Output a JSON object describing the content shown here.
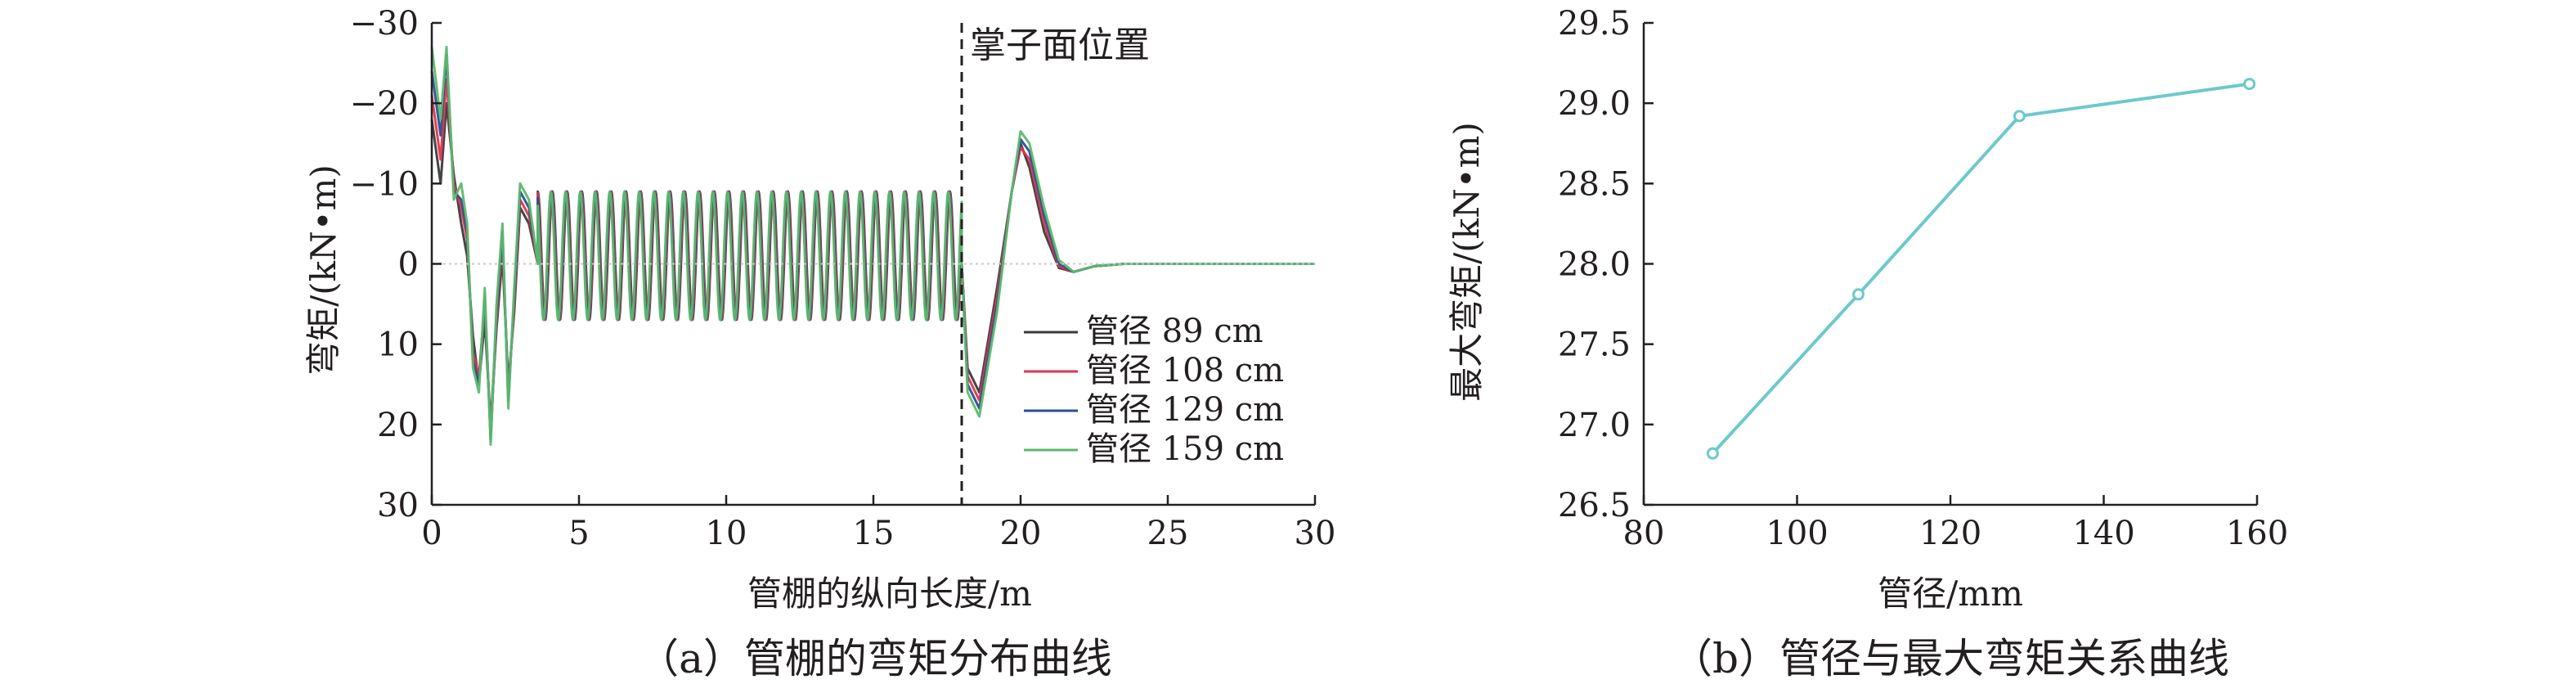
{
  "chart_data": [
    {
      "type": "line",
      "caption": "（a）管棚的弯矩分布曲线",
      "xlabel": "管棚的纵向长度/m",
      "ylabel": "弯矩/(kN•m)",
      "xlim": [
        0,
        30
      ],
      "ylim": [
        -30,
        30
      ],
      "y_inverted": true,
      "xticks": [
        0,
        5,
        10,
        15,
        20,
        25,
        30
      ],
      "yticks": [
        -30,
        -20,
        -10,
        0,
        10,
        20,
        30
      ],
      "ytick_labels": [
        "−30",
        "−20",
        "−10",
        "0",
        "10",
        "20",
        "30"
      ],
      "annotation": {
        "text": "掌子面位置",
        "x": 18
      },
      "legend_position": "right-center",
      "series": [
        {
          "name": "管径 89 cm",
          "color": "#3a3a3a",
          "x": [
            0,
            0.3,
            0.5,
            0.75,
            1.0,
            1.2,
            1.4,
            1.6,
            1.8,
            2.0,
            2.2,
            2.4,
            2.6,
            2.8,
            3.0,
            3.3,
            3.6,
            18.0,
            18.2,
            18.6,
            19.2,
            19.7,
            20.0,
            20.3,
            20.8,
            21.3,
            21.8,
            22.5,
            23.5,
            30
          ],
          "y": [
            -18,
            -10,
            -20,
            -11,
            -5,
            -1,
            9,
            15,
            7,
            20,
            8,
            -1,
            15,
            6,
            -7,
            -5,
            0,
            0,
            13,
            16,
            3,
            -9,
            -15,
            -12,
            -4,
            0.5,
            1,
            0.3,
            0,
            0
          ]
        },
        {
          "name": "管径 108 cm",
          "color": "#e0344e",
          "x": [
            0,
            0.3,
            0.5,
            0.75,
            1.0,
            1.2,
            1.4,
            1.6,
            1.8,
            2.0,
            2.2,
            2.4,
            2.6,
            2.8,
            3.0,
            3.3,
            3.6,
            18.0,
            18.2,
            18.6,
            19.2,
            19.7,
            20.0,
            20.3,
            20.8,
            21.3,
            21.8,
            22.5,
            23.5,
            30
          ],
          "y": [
            -21,
            -13,
            -23,
            -10,
            -7,
            -3,
            11,
            14,
            5,
            21,
            7,
            -3,
            16,
            5,
            -8,
            -6,
            0,
            0,
            14,
            17,
            4,
            -9,
            -14.5,
            -13,
            -5,
            0.3,
            1,
            0.3,
            0,
            0
          ]
        },
        {
          "name": "管径 129 cm",
          "color": "#2d4f8c",
          "x": [
            0,
            0.3,
            0.5,
            0.75,
            1.0,
            1.2,
            1.4,
            1.6,
            1.8,
            2.0,
            2.2,
            2.4,
            2.6,
            2.8,
            3.0,
            3.3,
            3.6,
            18.0,
            18.2,
            18.6,
            19.2,
            19.7,
            20.0,
            20.3,
            20.8,
            21.3,
            21.8,
            22.5,
            23.5,
            30
          ],
          "y": [
            -24,
            -16,
            -26,
            -9,
            -8,
            -4,
            12,
            15,
            4,
            22,
            6,
            -4,
            17,
            4,
            -9,
            -7,
            0,
            0,
            15,
            18,
            5,
            -9,
            -15.5,
            -14,
            -6,
            0,
            1,
            0.3,
            0,
            0
          ]
        },
        {
          "name": "管径 159 cm",
          "color": "#5db86d",
          "x": [
            0,
            0.3,
            0.5,
            0.75,
            1.0,
            1.2,
            1.4,
            1.6,
            1.8,
            2.0,
            2.2,
            2.4,
            2.6,
            2.8,
            3.0,
            3.3,
            3.6,
            18.0,
            18.2,
            18.6,
            19.2,
            19.7,
            20.0,
            20.3,
            20.8,
            21.3,
            21.8,
            22.5,
            23.5,
            30
          ],
          "y": [
            -27,
            -18,
            -27,
            -8,
            -10,
            -5,
            13,
            16,
            3,
            22.5,
            5,
            -5,
            18,
            3,
            -10,
            -8,
            0,
            0,
            16,
            19,
            6,
            -9,
            -16.5,
            -15,
            -7,
            -0.5,
            1,
            0.3,
            0,
            0
          ]
        }
      ],
      "oscillation": {
        "x_start": 3.6,
        "x_end": 18.0,
        "period": 0.5,
        "min": -9,
        "max": 7
      }
    },
    {
      "type": "line",
      "caption": "（b）管径与最大弯矩关系曲线",
      "xlabel": "管径/mm",
      "ylabel": "最大弯矩/(kN•m)",
      "xlim": [
        80,
        160
      ],
      "ylim": [
        26.5,
        29.5
      ],
      "xticks": [
        80,
        100,
        120,
        140,
        160
      ],
      "yticks": [
        26.5,
        27.0,
        27.5,
        28.0,
        28.5,
        29.0,
        29.5
      ],
      "ytick_labels": [
        "26.5",
        "27.0",
        "27.5",
        "28.0",
        "28.5",
        "29.0",
        "29.5"
      ],
      "color": "#6cc9cc",
      "x": [
        89,
        108,
        129,
        159
      ],
      "y": [
        26.82,
        27.81,
        28.92,
        29.12
      ]
    }
  ]
}
